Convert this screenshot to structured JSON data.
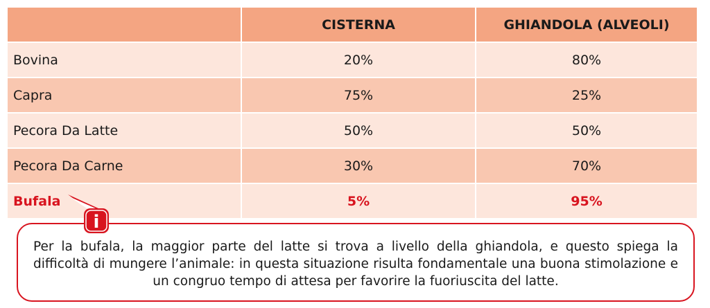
{
  "table": {
    "headers": [
      "",
      "CISTERNA",
      "GHIANDOLA (ALVEOLI)"
    ],
    "rows": [
      {
        "animal": "Bovina",
        "cisterna": "20%",
        "ghiandola": "80%"
      },
      {
        "animal": "Capra",
        "cisterna": "75%",
        "ghiandola": "25%"
      },
      {
        "animal": "Pecora Da Latte",
        "cisterna": "50%",
        "ghiandola": "50%"
      },
      {
        "animal": "Pecora Da Carne",
        "cisterna": "30%",
        "ghiandola": "70%"
      },
      {
        "animal": "Bufala",
        "cisterna": "5%",
        "ghiandola": "95%"
      }
    ]
  },
  "note": {
    "icon": "info-icon",
    "icon_letter": "i",
    "text": "Per la bufala, la maggior parte del latte si trova a livello della ghiandola, e questo spiega la difficoltà di mungere l’animale: in questa situazione risulta fondamentale una buona stimolazione e un congruo tempo di attesa per favorire la fuoriuscita del latte."
  },
  "colors": {
    "header": "#f4a582",
    "row_light": "#fde6dc",
    "row_dark": "#f9c7b0",
    "accent": "#d8141f"
  }
}
